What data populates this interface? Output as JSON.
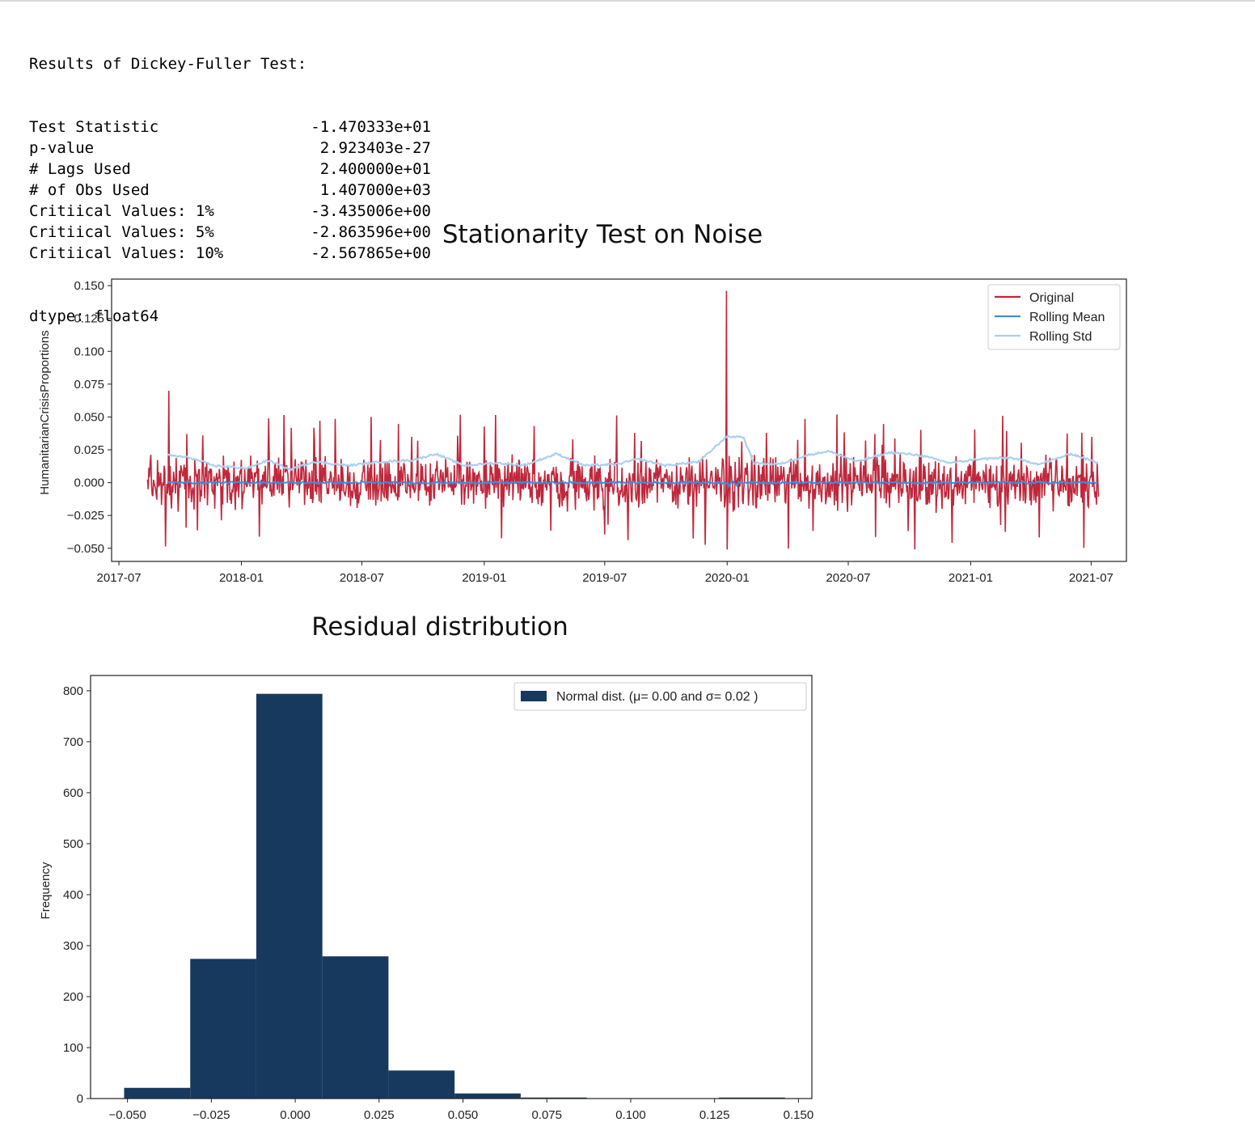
{
  "output": {
    "header": "Results of Dickey-Fuller Test:",
    "rows": [
      {
        "key": "Test Statistic",
        "value": "-1.470333e+01"
      },
      {
        "key": "p-value",
        "value": "2.923403e-27"
      },
      {
        "key": "# Lags Used",
        "value": "2.400000e+01"
      },
      {
        "key": "# of Obs Used",
        "value": "1.407000e+03"
      },
      {
        "key": "Critiical Values: 1%",
        "value": "-3.435006e+00"
      },
      {
        "key": "Critiical Values: 5%",
        "value": "-2.863596e+00"
      },
      {
        "key": "Critiical Values: 10%",
        "value": "-2.567865e+00"
      }
    ],
    "footer": "dtype: float64"
  },
  "chart_data": [
    {
      "type": "line",
      "title": "Stationarity Test on Noise",
      "xlabel": "",
      "ylabel": "HumanitarianCrisisProportions",
      "x_tick_labels": [
        "2017-07",
        "2018-01",
        "2018-07",
        "2019-01",
        "2019-07",
        "2020-01",
        "2020-07",
        "2021-01",
        "2021-07"
      ],
      "y_ticks": [
        -0.05,
        -0.025,
        0.0,
        0.025,
        0.05,
        0.075,
        0.1,
        0.125,
        0.15
      ],
      "y_tick_labels": [
        "−0.050",
        "−0.025",
        "0.000",
        "0.025",
        "0.050",
        "0.075",
        "0.100",
        "0.125",
        "0.150"
      ],
      "xlim": [
        "2017-06-20",
        "2021-08-23"
      ],
      "ylim": [
        -0.06,
        0.155
      ],
      "legend_position": "top-right",
      "series": [
        {
          "name": "Original",
          "color": "#c0273b",
          "x_range": [
            "2017-08-13",
            "2021-07-12"
          ],
          "y_range": [
            -0.051,
            0.146
          ],
          "notable_points": [
            {
              "x": "2017-09-14",
              "y": 0.07
            },
            {
              "x": "2019-12-31",
              "y": 0.146
            },
            {
              "x": "2020-01-01",
              "y": -0.051
            }
          ]
        },
        {
          "name": "Rolling Mean",
          "color": "#3a8fe0",
          "x_range": [
            "2017-09-12",
            "2021-07-12"
          ],
          "approx_value": 0.0
        },
        {
          "name": "Rolling Std",
          "color": "#a9d0f1",
          "x_range": [
            "2017-09-12",
            "2021-07-12"
          ],
          "y_range": [
            0.01,
            0.036
          ],
          "points": [
            {
              "x": "2017-09-12",
              "y": 0.021
            },
            {
              "x": "2017-10-15",
              "y": 0.019
            },
            {
              "x": "2017-11-20",
              "y": 0.013
            },
            {
              "x": "2018-01-10",
              "y": 0.011
            },
            {
              "x": "2018-02-10",
              "y": 0.017
            },
            {
              "x": "2018-03-15",
              "y": 0.01
            },
            {
              "x": "2018-04-20",
              "y": 0.016
            },
            {
              "x": "2018-06-10",
              "y": 0.013
            },
            {
              "x": "2018-08-01",
              "y": 0.016
            },
            {
              "x": "2018-09-15",
              "y": 0.017
            },
            {
              "x": "2018-10-20",
              "y": 0.022
            },
            {
              "x": "2018-12-01",
              "y": 0.013
            },
            {
              "x": "2019-01-20",
              "y": 0.015
            },
            {
              "x": "2019-03-01",
              "y": 0.013
            },
            {
              "x": "2019-04-20",
              "y": 0.022
            },
            {
              "x": "2019-06-01",
              "y": 0.013
            },
            {
              "x": "2019-07-20",
              "y": 0.014
            },
            {
              "x": "2019-08-20",
              "y": 0.018
            },
            {
              "x": "2019-10-01",
              "y": 0.013
            },
            {
              "x": "2019-11-20",
              "y": 0.016
            },
            {
              "x": "2019-12-31",
              "y": 0.035
            },
            {
              "x": "2020-01-25",
              "y": 0.035
            },
            {
              "x": "2020-02-10",
              "y": 0.015
            },
            {
              "x": "2020-03-20",
              "y": 0.014
            },
            {
              "x": "2020-05-01",
              "y": 0.021
            },
            {
              "x": "2020-06-01",
              "y": 0.024
            },
            {
              "x": "2020-07-15",
              "y": 0.016
            },
            {
              "x": "2020-09-01",
              "y": 0.023
            },
            {
              "x": "2020-10-15",
              "y": 0.021
            },
            {
              "x": "2020-12-01",
              "y": 0.015
            },
            {
              "x": "2021-01-15",
              "y": 0.018
            },
            {
              "x": "2021-03-01",
              "y": 0.019
            },
            {
              "x": "2021-04-15",
              "y": 0.014
            },
            {
              "x": "2021-06-01",
              "y": 0.022
            },
            {
              "x": "2021-07-12",
              "y": 0.015
            }
          ]
        }
      ]
    },
    {
      "type": "bar",
      "subtype": "histogram",
      "title": "Residual distribution",
      "xlabel": "",
      "ylabel": "Frequency",
      "x_ticks": [
        -0.05,
        -0.025,
        0.0,
        0.025,
        0.05,
        0.075,
        0.1,
        0.125,
        0.15
      ],
      "x_tick_labels": [
        "−0.050",
        "−0.025",
        "0.000",
        "0.025",
        "0.050",
        "0.075",
        "0.100",
        "0.125",
        "0.150"
      ],
      "y_ticks": [
        0,
        100,
        200,
        300,
        400,
        500,
        600,
        700,
        800
      ],
      "y_tick_labels": [
        "0",
        "100",
        "200",
        "300",
        "400",
        "500",
        "600",
        "700",
        "800"
      ],
      "xlim": [
        -0.061,
        0.154
      ],
      "ylim": [
        0,
        830
      ],
      "color": "#18395e",
      "legend_position": "top-right",
      "legend_label": "Normal dist. (μ= 0.00 and σ= 0.02 )",
      "bin_edges": [
        -0.051,
        -0.0313,
        -0.0116,
        0.0081,
        0.0278,
        0.0475,
        0.0672,
        0.0869,
        0.1066,
        0.1263,
        0.146
      ],
      "values": [
        21,
        274,
        794,
        279,
        55,
        10,
        2,
        0,
        0,
        2
      ]
    }
  ]
}
